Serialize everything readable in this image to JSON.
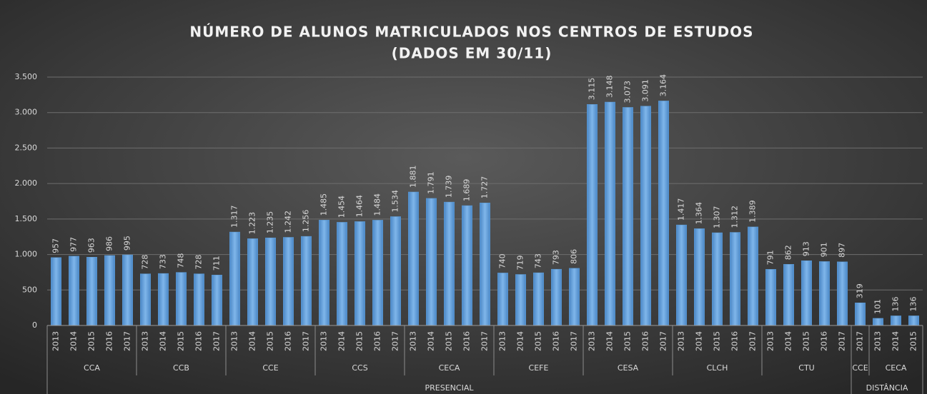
{
  "chart_data": {
    "type": "bar",
    "title": [
      "NÚMERO DE ALUNOS MATRICULADOS  NOS CENTROS DE ESTUDOS",
      "(DADOS EM 30/11)"
    ],
    "color": "#5b9bd5",
    "ylim": [
      0,
      3500
    ],
    "yticks": [
      0,
      500,
      {
        "value": 1000,
        "label": "1.000"
      },
      {
        "value": 1500,
        "label": "1.500"
      },
      {
        "value": 2000,
        "label": "2.000"
      },
      {
        "value": 2500,
        "label": "2.500"
      },
      {
        "value": 3000,
        "label": "3.000"
      },
      {
        "value": 3500,
        "label": "3.500"
      }
    ],
    "grid": true,
    "groups": [
      {
        "name": "PRESENCIAL",
        "groups": [
          {
            "name": "CCA",
            "categories": [
              "2013",
              "2014",
              "2015",
              "2016",
              "2017"
            ],
            "values": [
              957,
              977,
              963,
              986,
              995
            ],
            "value_labels": [
              "957",
              "977",
              "963",
              "986",
              "995"
            ]
          },
          {
            "name": "CCB",
            "categories": [
              "2013",
              "2014",
              "2015",
              "2016",
              "2017"
            ],
            "values": [
              728,
              733,
              748,
              728,
              711
            ],
            "value_labels": [
              "728",
              "733",
              "748",
              "728",
              "711"
            ]
          },
          {
            "name": "CCE",
            "categories": [
              "2013",
              "2014",
              "2015",
              "2016",
              "2017"
            ],
            "values": [
              1317,
              1223,
              1235,
              1242,
              1256
            ],
            "value_labels": [
              "1.317",
              "1.223",
              "1.235",
              "1.242",
              "1.256"
            ]
          },
          {
            "name": "CCS",
            "categories": [
              "2013",
              "2014",
              "2015",
              "2016",
              "2017"
            ],
            "values": [
              1485,
              1454,
              1464,
              1484,
              1534
            ],
            "value_labels": [
              "1.485",
              "1.454",
              "1.464",
              "1.484",
              "1.534"
            ]
          },
          {
            "name": "CECA",
            "categories": [
              "2013",
              "2014",
              "2015",
              "2016",
              "2017"
            ],
            "values": [
              1881,
              1791,
              1739,
              1689,
              1727
            ],
            "value_labels": [
              "1.881",
              "1.791",
              "1.739",
              "1.689",
              "1.727"
            ]
          },
          {
            "name": "CEFE",
            "categories": [
              "2013",
              "2014",
              "2015",
              "2016",
              "2017"
            ],
            "values": [
              740,
              719,
              743,
              793,
              806
            ],
            "value_labels": [
              "740",
              "719",
              "743",
              "793",
              "806"
            ]
          },
          {
            "name": "CESA",
            "categories": [
              "2013",
              "2014",
              "2015",
              "2016",
              "2017"
            ],
            "values": [
              3115,
              3148,
              3073,
              3091,
              3164
            ],
            "value_labels": [
              "3.115",
              "3.148",
              "3.073",
              "3.091",
              "3.164"
            ]
          },
          {
            "name": "CLCH",
            "categories": [
              "2013",
              "2014",
              "2015",
              "2016",
              "2017"
            ],
            "values": [
              1417,
              1364,
              1307,
              1312,
              1389
            ],
            "value_labels": [
              "1.417",
              "1.364",
              "1.307",
              "1.312",
              "1.389"
            ]
          },
          {
            "name": "CTU",
            "categories": [
              "2013",
              "2014",
              "2015",
              "2016",
              "2017"
            ],
            "values": [
              791,
              862,
              913,
              901,
              897
            ],
            "value_labels": [
              "791",
              "862",
              "913",
              "901",
              "897"
            ]
          }
        ]
      },
      {
        "name": "DISTÂNCIA",
        "groups": [
          {
            "name": "CCE",
            "categories": [
              "2017"
            ],
            "values": [
              319
            ],
            "value_labels": [
              "319"
            ]
          },
          {
            "name": "CECA",
            "categories": [
              "2013",
              "2014",
              "2015"
            ],
            "values": [
              101,
              136,
              136
            ],
            "value_labels": [
              "101",
              "136",
              "136"
            ]
          }
        ]
      }
    ]
  }
}
